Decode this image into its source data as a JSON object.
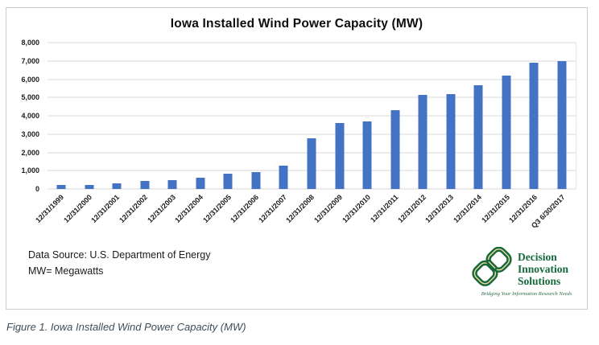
{
  "figure": {
    "caption": "Figure 1. Iowa Installed Wind Power Capacity (MW)"
  },
  "chart_data": {
    "type": "bar",
    "title": "Iowa Installed Wind Power Capacity (MW)",
    "categories": [
      "12/31/1999",
      "12/31/2000",
      "12/31/2001",
      "12/31/2002",
      "12/31/2003",
      "12/31/2004",
      "12/31/2005",
      "12/31/2006",
      "12/31/2007",
      "12/31/2008",
      "12/31/2009",
      "12/31/2010",
      "12/31/2011",
      "12/31/2012",
      "12/31/2013",
      "12/31/2014",
      "12/31/2015",
      "12/31/2016",
      "Q3 6/30/2017"
    ],
    "values": [
      242,
      242,
      324,
      423,
      472,
      632,
      836,
      936,
      1273,
      2791,
      3604,
      3675,
      4322,
      5133,
      5178,
      5688,
      6212,
      6917,
      6974
    ],
    "xlabel": "",
    "ylabel": "",
    "ylim": [
      0,
      8000
    ],
    "ytick_step": 1000,
    "ytick_labels": [
      "0",
      "1,000",
      "2,000",
      "3,000",
      "4,000",
      "5,000",
      "6,000",
      "7,000",
      "8,000"
    ],
    "grid": true,
    "legend": "none",
    "bar_color": "#4472c4",
    "gridline_color": "#d9d9d9"
  },
  "footer": {
    "source_line1": "Data Source: U.S. Department of Energy",
    "source_line2": "MW= Megawatts"
  },
  "logo": {
    "name_line1": "Decision",
    "name_line2": "Innovation",
    "name_line3": "Solutions",
    "tagline": "Bridging Your Information Research Needs",
    "green": "#17683b",
    "gold": "#e8d79e"
  }
}
